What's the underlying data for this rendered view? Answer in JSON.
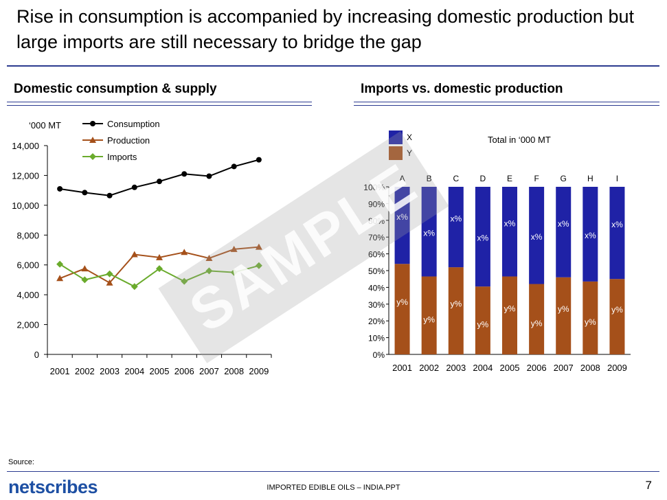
{
  "title": "Rise in consumption is accompanied by increasing domestic production but large imports are still necessary to bridge the gap",
  "left_heading": "Domestic consumption & supply",
  "right_heading": "Imports vs. domestic production",
  "watermark": "SAMPLE",
  "footer": {
    "source": "Source:",
    "logo": "netscribes",
    "file": "IMPORTED EDIBLE OILS – INDIA.PPT",
    "page": "7"
  },
  "chart_data": [
    {
      "type": "line",
      "unit_label": "‘000 MT",
      "x": [
        "2001",
        "2002",
        "2003",
        "2004",
        "2005",
        "2006",
        "2007",
        "2008",
        "2009"
      ],
      "ylim": [
        0,
        14000
      ],
      "yticks": [
        0,
        2000,
        4000,
        6000,
        8000,
        10000,
        12000,
        14000
      ],
      "ytick_labels": [
        "0",
        "2,000",
        "4,000",
        "6,000",
        "8,000",
        "10,000",
        "12,000",
        "14,000"
      ],
      "legend_position": "top",
      "series": [
        {
          "name": "Consumption",
          "color": "#000000",
          "marker": "circle",
          "values": [
            11100,
            10850,
            10650,
            11200,
            11600,
            12100,
            11950,
            12600,
            13050
          ]
        },
        {
          "name": "Production",
          "color": "#a5501a",
          "marker": "triangle",
          "values": [
            5100,
            5750,
            4800,
            6700,
            6500,
            6850,
            6450,
            7050,
            7200
          ]
        },
        {
          "name": "Imports",
          "color": "#6aab2c",
          "marker": "diamond",
          "values": [
            6050,
            5000,
            5400,
            4550,
            5750,
            4900,
            5600,
            5500,
            5950
          ]
        }
      ]
    },
    {
      "type": "bar",
      "stacked": true,
      "note": "Total in ‘000 MT",
      "categories": [
        "2001",
        "2002",
        "2003",
        "2004",
        "2005",
        "2006",
        "2007",
        "2008",
        "2009"
      ],
      "top_labels": [
        "A",
        "B",
        "C",
        "D",
        "E",
        "F",
        "G",
        "H",
        "I"
      ],
      "ylim": [
        0,
        100
      ],
      "yticks": [
        0,
        10,
        20,
        30,
        40,
        50,
        60,
        70,
        80,
        90,
        100
      ],
      "ytick_labels": [
        "0%",
        "10%",
        "20%",
        "30%",
        "40%",
        "50%",
        "60%",
        "70%",
        "80%",
        "90%",
        "100%"
      ],
      "legend_position": "top-left",
      "series": [
        {
          "name": "Y",
          "color": "#a5501a",
          "label": "y%",
          "values": [
            54,
            46.5,
            52,
            40.5,
            46.5,
            42,
            46,
            43.5,
            45
          ]
        },
        {
          "name": "X",
          "color": "#1f22a6",
          "label": "x%",
          "values": [
            46,
            53.5,
            48,
            59.5,
            53.5,
            58,
            54,
            56.5,
            55
          ]
        }
      ]
    }
  ]
}
